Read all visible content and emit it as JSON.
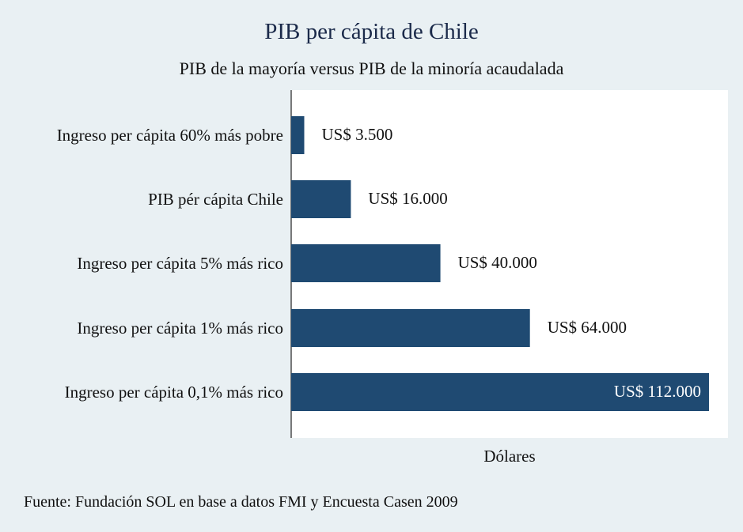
{
  "chart_data": {
    "type": "bar",
    "orientation": "horizontal",
    "title": "PIB per cápita de Chile",
    "subtitle": "PIB de la mayoría versus PIB de la minoría acaudalada",
    "xlabel": "Dólares",
    "ylabel": "",
    "xlim": [
      0,
      115000
    ],
    "grid": false,
    "categories": [
      "Ingreso per cápita 60% más pobre",
      "PIB pér cápita Chile",
      "Ingreso per cápita 5% más rico",
      "Ingreso per cápita 1% más rico",
      "Ingreso per cápita 0,1% más rico"
    ],
    "values": [
      3500,
      16000,
      40000,
      64000,
      112000
    ],
    "data_labels": [
      "US$ 3.500",
      "US$ 16.000",
      "US$ 40.000",
      "US$ 64.000",
      "US$ 112.000"
    ],
    "bar_color": "#1f4a72",
    "plot_background": "#ffffff",
    "page_background": "#e9f0f3"
  },
  "source": "Fuente: Fundación SOL en base a datos FMI y Encuesta Casen 2009"
}
